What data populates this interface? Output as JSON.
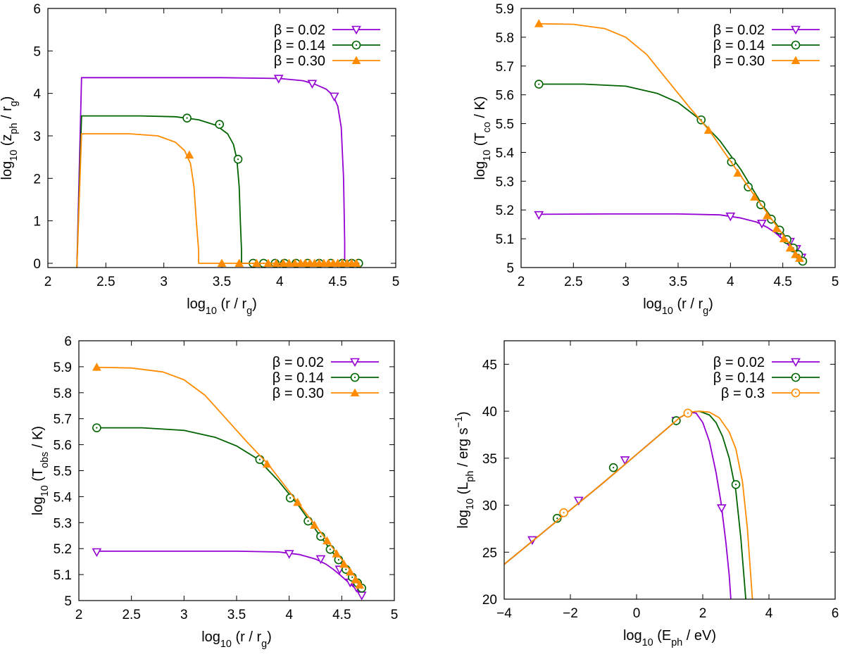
{
  "colors": {
    "purple": "#9400d3",
    "green": "#006400",
    "orange": "#ff8c00",
    "axis": "#000000"
  },
  "chart_data": [
    {
      "type": "line",
      "panel": "top-left",
      "title": "",
      "xlabel": {
        "base": "log",
        "sub": "10",
        "tail": " (r / r",
        "sub2": "g",
        "tail2": ")"
      },
      "ylabel": {
        "base": "log",
        "sub": "10",
        "tail": " (z",
        "sub2": "ph",
        "tail2": " / r",
        "sub3": "g",
        "tail3": ")"
      },
      "xlim": [
        2,
        5
      ],
      "ylim": [
        -0.1,
        6
      ],
      "xticks": [
        2,
        2.5,
        3,
        3.5,
        4,
        4.5,
        5
      ],
      "xtick_labels": [
        "2",
        "2.5",
        "3",
        "3.5",
        "4",
        "4.5",
        "5"
      ],
      "yticks": [
        0,
        1,
        2,
        3,
        4,
        5,
        6
      ],
      "ytick_labels": [
        "0",
        "1",
        "2",
        "3",
        "4",
        "5",
        "6"
      ],
      "legend_position": "top-right",
      "series": [
        {
          "name": "β = 0.02",
          "color": "purple",
          "marker": "triangle-down-open",
          "x": [
            2.25,
            2.29,
            2.29,
            3.0,
            3.5,
            4.0,
            4.2,
            4.3,
            4.4,
            4.46,
            4.5,
            4.53,
            4.55,
            4.56,
            4.56,
            4.68
          ],
          "y": [
            -0.1,
            4.37,
            4.37,
            4.37,
            4.37,
            4.35,
            4.3,
            4.22,
            4.1,
            3.95,
            3.7,
            3.2,
            2.0,
            0.5,
            0.0,
            0.0
          ],
          "marker_x": [
            3.99,
            4.28,
            4.47
          ],
          "marker_y": [
            4.35,
            4.23,
            3.93
          ]
        },
        {
          "name": "β = 0.14",
          "color": "green",
          "marker": "circle-dot",
          "x": [
            2.25,
            2.29,
            2.29,
            2.8,
            3.1,
            3.3,
            3.45,
            3.55,
            3.6,
            3.63,
            3.65,
            3.66,
            3.67,
            3.67,
            4.68
          ],
          "y": [
            -0.1,
            3.47,
            3.47,
            3.47,
            3.45,
            3.38,
            3.25,
            3.05,
            2.8,
            2.45,
            1.8,
            1.0,
            0.3,
            0.0,
            0.0
          ],
          "marker_x": [
            3.2,
            3.48,
            3.64,
            3.77,
            3.86,
            3.96,
            4.04,
            4.14,
            4.24,
            4.34,
            4.44,
            4.54,
            4.62,
            4.68
          ],
          "marker_y": [
            3.42,
            3.27,
            2.45,
            0,
            0,
            0,
            0,
            0,
            0,
            0,
            0,
            0,
            0,
            0
          ]
        },
        {
          "name": "β = 0.30",
          "color": "orange",
          "marker": "triangle-up-filled",
          "x": [
            2.25,
            2.29,
            2.29,
            2.7,
            2.95,
            3.1,
            3.18,
            3.23,
            3.26,
            3.28,
            3.3,
            3.3,
            4.68
          ],
          "y": [
            -0.1,
            3.05,
            3.05,
            3.05,
            3.0,
            2.85,
            2.65,
            2.35,
            1.8,
            1.0,
            0.3,
            0.0,
            0.0
          ],
          "marker_x": [
            3.22,
            3.5,
            3.65,
            3.8,
            3.9,
            3.97,
            4.03,
            4.08,
            4.13,
            4.18,
            4.22,
            4.26,
            4.3,
            4.34,
            4.38,
            4.42,
            4.46,
            4.5,
            4.54,
            4.58,
            4.62,
            4.66
          ],
          "marker_y": [
            2.55,
            0,
            0,
            0,
            0,
            0,
            0,
            0,
            0,
            0,
            0,
            0,
            0,
            0,
            0,
            0,
            0,
            0,
            0,
            0,
            0,
            0
          ]
        }
      ]
    },
    {
      "type": "line",
      "panel": "top-right",
      "title": "",
      "xlabel": {
        "base": "log",
        "sub": "10",
        "tail": " (r / r",
        "sub2": "g",
        "tail2": ")"
      },
      "ylabel": {
        "base": "log",
        "sub": "10",
        "tail": " (T",
        "sub2": "co",
        "tail2": " / K)"
      },
      "xlim": [
        2,
        5
      ],
      "ylim": [
        5,
        5.9
      ],
      "xticks": [
        2,
        2.5,
        3,
        3.5,
        4,
        4.5,
        5
      ],
      "xtick_labels": [
        "2",
        "2.5",
        "3",
        "3.5",
        "4",
        "4.5",
        "5"
      ],
      "yticks": [
        5,
        5.1,
        5.2,
        5.3,
        5.4,
        5.5,
        5.6,
        5.7,
        5.8,
        5.9
      ],
      "ytick_labels": [
        "5",
        "5.1",
        "5.2",
        "5.3",
        "5.4",
        "5.5",
        "5.6",
        "5.7",
        "5.8",
        "5.9"
      ],
      "legend_position": "top-right",
      "series": [
        {
          "name": "β = 0.02",
          "color": "purple",
          "marker": "triangle-down-open",
          "x": [
            2.15,
            2.8,
            3.5,
            3.9,
            4.1,
            4.25,
            4.35,
            4.42,
            4.48,
            4.55,
            4.62,
            4.69
          ],
          "y": [
            5.185,
            5.186,
            5.186,
            5.183,
            5.172,
            5.158,
            5.14,
            5.123,
            5.105,
            5.08,
            5.05,
            5.02
          ],
          "marker_x": [
            2.17,
            4.0,
            4.3,
            4.47,
            4.57,
            4.63,
            4.68
          ],
          "marker_y": [
            5.183,
            5.178,
            5.153,
            5.12,
            5.09,
            5.065,
            5.035
          ]
        },
        {
          "name": "β = 0.14",
          "color": "green",
          "marker": "circle-dot",
          "x": [
            2.15,
            2.6,
            3.0,
            3.3,
            3.5,
            3.7,
            3.9,
            4.1,
            4.3,
            4.5,
            4.69
          ],
          "y": [
            5.637,
            5.637,
            5.63,
            5.605,
            5.573,
            5.517,
            5.44,
            5.34,
            5.22,
            5.12,
            5.02
          ],
          "marker_x": [
            2.17,
            3.72,
            4.01,
            4.17,
            4.29,
            4.39,
            4.47,
            4.54,
            4.6,
            4.65,
            4.69
          ],
          "marker_y": [
            5.637,
            5.513,
            5.367,
            5.28,
            5.218,
            5.168,
            5.13,
            5.097,
            5.068,
            5.045,
            5.022
          ]
        },
        {
          "name": "β = 0.30",
          "color": "orange",
          "marker": "triangle-up-filled",
          "x": [
            2.15,
            2.5,
            2.8,
            3.0,
            3.2,
            3.4,
            3.6,
            3.8,
            4.0,
            4.2,
            4.4,
            4.69
          ],
          "y": [
            5.847,
            5.845,
            5.83,
            5.8,
            5.74,
            5.65,
            5.56,
            5.475,
            5.37,
            5.265,
            5.165,
            5.02
          ],
          "marker_x": [
            2.17,
            3.79,
            4.07,
            4.23,
            4.35,
            4.44,
            4.51,
            4.57,
            4.62,
            4.66
          ],
          "marker_y": [
            5.847,
            5.477,
            5.328,
            5.245,
            5.18,
            5.135,
            5.1,
            5.068,
            5.045,
            5.032
          ]
        }
      ]
    },
    {
      "type": "line",
      "panel": "bottom-left",
      "title": "",
      "xlabel": {
        "base": "log",
        "sub": "10",
        "tail": " (r / r",
        "sub2": "g",
        "tail2": ")"
      },
      "ylabel": {
        "base": "log",
        "sub": "10",
        "tail": " (T",
        "sub2": "obs",
        "tail2": " / K)"
      },
      "xlim": [
        2,
        5
      ],
      "ylim": [
        5,
        6
      ],
      "xticks": [
        2,
        2.5,
        3,
        3.5,
        4,
        4.5,
        5
      ],
      "xtick_labels": [
        "2",
        "2.5",
        "3",
        "3.5",
        "4",
        "4.5",
        "5"
      ],
      "yticks": [
        5,
        5.1,
        5.2,
        5.3,
        5.4,
        5.5,
        5.6,
        5.7,
        5.8,
        5.9,
        6
      ],
      "ytick_labels": [
        "5",
        "5.1",
        "5.2",
        "5.3",
        "5.4",
        "5.5",
        "5.6",
        "5.7",
        "5.8",
        "5.9",
        "6"
      ],
      "legend_position": "top-right",
      "series": [
        {
          "name": "β = 0.02",
          "color": "purple",
          "marker": "triangle-down-open",
          "x": [
            2.15,
            2.8,
            3.5,
            3.9,
            4.1,
            4.25,
            4.35,
            4.42,
            4.48,
            4.55,
            4.62,
            4.69
          ],
          "y": [
            5.19,
            5.19,
            5.19,
            5.187,
            5.177,
            5.16,
            5.14,
            5.12,
            5.1,
            5.075,
            5.05,
            5.02
          ],
          "marker_x": [
            2.17,
            4.0,
            4.3,
            4.48,
            4.58,
            4.64,
            4.69
          ],
          "marker_y": [
            5.187,
            5.18,
            5.16,
            5.12,
            5.07,
            5.05,
            5.02
          ]
        },
        {
          "name": "β = 0.14",
          "color": "green",
          "marker": "circle-dot",
          "x": [
            2.15,
            2.6,
            3.0,
            3.3,
            3.5,
            3.7,
            3.9,
            4.1,
            4.3,
            4.5,
            4.69
          ],
          "y": [
            5.665,
            5.665,
            5.655,
            5.628,
            5.595,
            5.545,
            5.46,
            5.36,
            5.245,
            5.14,
            5.045
          ],
          "marker_x": [
            2.17,
            3.72,
            4.01,
            4.18,
            4.3,
            4.39,
            4.47,
            4.54,
            4.6,
            4.65,
            4.69
          ],
          "marker_y": [
            5.665,
            5.543,
            5.395,
            5.306,
            5.247,
            5.197,
            5.157,
            5.12,
            5.09,
            5.068,
            5.048
          ]
        },
        {
          "name": "β = 0.30",
          "color": "orange",
          "marker": "triangle-up-filled",
          "x": [
            2.15,
            2.5,
            2.8,
            3.0,
            3.2,
            3.4,
            3.6,
            3.8,
            4.0,
            4.2,
            4.4,
            4.69
          ],
          "y": [
            5.898,
            5.895,
            5.88,
            5.85,
            5.79,
            5.7,
            5.61,
            5.525,
            5.42,
            5.315,
            5.21,
            5.06
          ],
          "marker_x": [
            2.17,
            3.79,
            4.08,
            4.24,
            4.36,
            4.45,
            4.52,
            4.58,
            4.63,
            4.67
          ],
          "marker_y": [
            5.898,
            5.525,
            5.378,
            5.29,
            5.23,
            5.18,
            5.14,
            5.11,
            5.08,
            5.06
          ]
        }
      ]
    },
    {
      "type": "line",
      "panel": "bottom-right",
      "title": "",
      "xlabel": {
        "base": "log",
        "sub": "10",
        "tail": " (E",
        "sub2": "ph",
        "tail2": " / eV)"
      },
      "ylabel": {
        "base": "log",
        "sub": "10",
        "tail": " (L",
        "sub2": "ph",
        "tail2": " / erg s",
        "sup": "−1",
        "tail3": ")"
      },
      "xlim": [
        -4,
        6
      ],
      "ylim": [
        20,
        47.5
      ],
      "xticks": [
        -4,
        -2,
        0,
        2,
        4,
        6
      ],
      "xtick_labels": [
        "−4",
        "−2",
        "0",
        "2",
        "4",
        "6"
      ],
      "yticks": [
        20,
        25,
        30,
        35,
        40,
        45
      ],
      "ytick_labels": [
        "20",
        "25",
        "30",
        "35",
        "40",
        "45"
      ],
      "legend_position": "top-right",
      "series": [
        {
          "name": "β = 0.02",
          "color": "purple",
          "marker": "triangle-down-open",
          "x": [
            -4.0,
            -3.0,
            -2.0,
            -1.0,
            0.0,
            0.6,
            1.0,
            1.3,
            1.6,
            1.8,
            2.0,
            2.2,
            2.4,
            2.55,
            2.7,
            2.8,
            2.85
          ],
          "y": [
            23.7,
            26.6,
            29.5,
            32.4,
            35.4,
            37.2,
            38.4,
            39.3,
            39.9,
            39.8,
            38.8,
            36.8,
            33.5,
            30.3,
            26.0,
            22.5,
            20.0
          ],
          "marker_x": [
            -3.15,
            -1.75,
            -0.35,
            1.2,
            2.57
          ],
          "marker_y": [
            26.3,
            30.5,
            34.8,
            39.0,
            29.7
          ]
        },
        {
          "name": "β = 0.14",
          "color": "green",
          "marker": "circle-dot",
          "x": [
            -4.0,
            -3.0,
            -2.0,
            -1.0,
            0.0,
            0.6,
            1.0,
            1.3,
            1.6,
            1.9,
            2.2,
            2.4,
            2.6,
            2.8,
            3.0,
            3.15,
            3.3
          ],
          "y": [
            23.7,
            26.6,
            29.5,
            32.4,
            35.4,
            37.2,
            38.4,
            39.3,
            39.9,
            40.0,
            39.6,
            38.8,
            37.3,
            35.0,
            31.5,
            26.5,
            20.0
          ],
          "marker_x": [
            -2.4,
            -0.7,
            1.2,
            3.0
          ],
          "marker_y": [
            28.6,
            34.0,
            39.0,
            32.2
          ]
        },
        {
          "name": "β = 0.3",
          "color": "orange",
          "marker": "circle-dot",
          "x": [
            -4.0,
            -3.0,
            -2.0,
            -1.0,
            0.0,
            0.6,
            1.0,
            1.3,
            1.6,
            1.9,
            2.2,
            2.5,
            2.8,
            3.0,
            3.2,
            3.35,
            3.5
          ],
          "y": [
            23.7,
            26.6,
            29.5,
            32.4,
            35.4,
            37.2,
            38.4,
            39.3,
            39.9,
            40.0,
            39.9,
            39.3,
            37.8,
            36.0,
            32.5,
            27.5,
            20.0
          ],
          "marker_x": [
            -2.2,
            1.55
          ],
          "marker_y": [
            29.2,
            39.8
          ]
        }
      ]
    }
  ]
}
